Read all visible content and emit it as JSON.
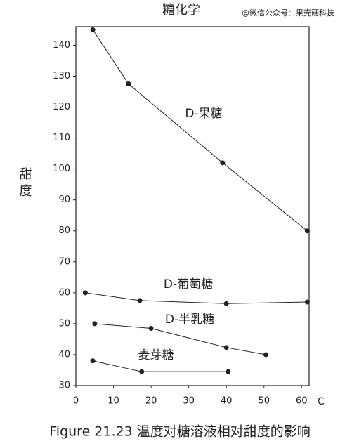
{
  "chart_data": {
    "type": "line",
    "title": "糖化学",
    "watermark": "@微信公众号：果壳硬科技",
    "y_label": "甜度",
    "x_label": "C",
    "caption": "Figure 21.23  温度对糖溶液相对甜度的影响",
    "xlim": [
      0,
      62
    ],
    "ylim": [
      30,
      146
    ],
    "xticks": [
      0,
      10,
      20,
      30,
      40,
      50,
      60
    ],
    "yticks": [
      30,
      40,
      50,
      60,
      70,
      80,
      90,
      100,
      110,
      120,
      130,
      140
    ],
    "series": [
      {
        "name": "D-果糖",
        "color": "#222",
        "x": [
          4.5,
          14,
          39,
          61.5
        ],
        "values": [
          145,
          127.5,
          102,
          80
        ]
      },
      {
        "name": "D-葡萄糖",
        "color": "#222",
        "x": [
          2.5,
          17,
          40,
          61.5
        ],
        "values": [
          60,
          57.5,
          56.5,
          57
        ]
      },
      {
        "name": "D-半乳糖",
        "color": "#222",
        "x": [
          5,
          20,
          40,
          50.5
        ],
        "values": [
          50,
          48.5,
          42.3,
          40
        ]
      },
      {
        "name": "麦芽糖",
        "color": "#222",
        "x": [
          4.5,
          17.5,
          40.5
        ],
        "values": [
          38,
          34.5,
          34.5
        ]
      }
    ]
  }
}
